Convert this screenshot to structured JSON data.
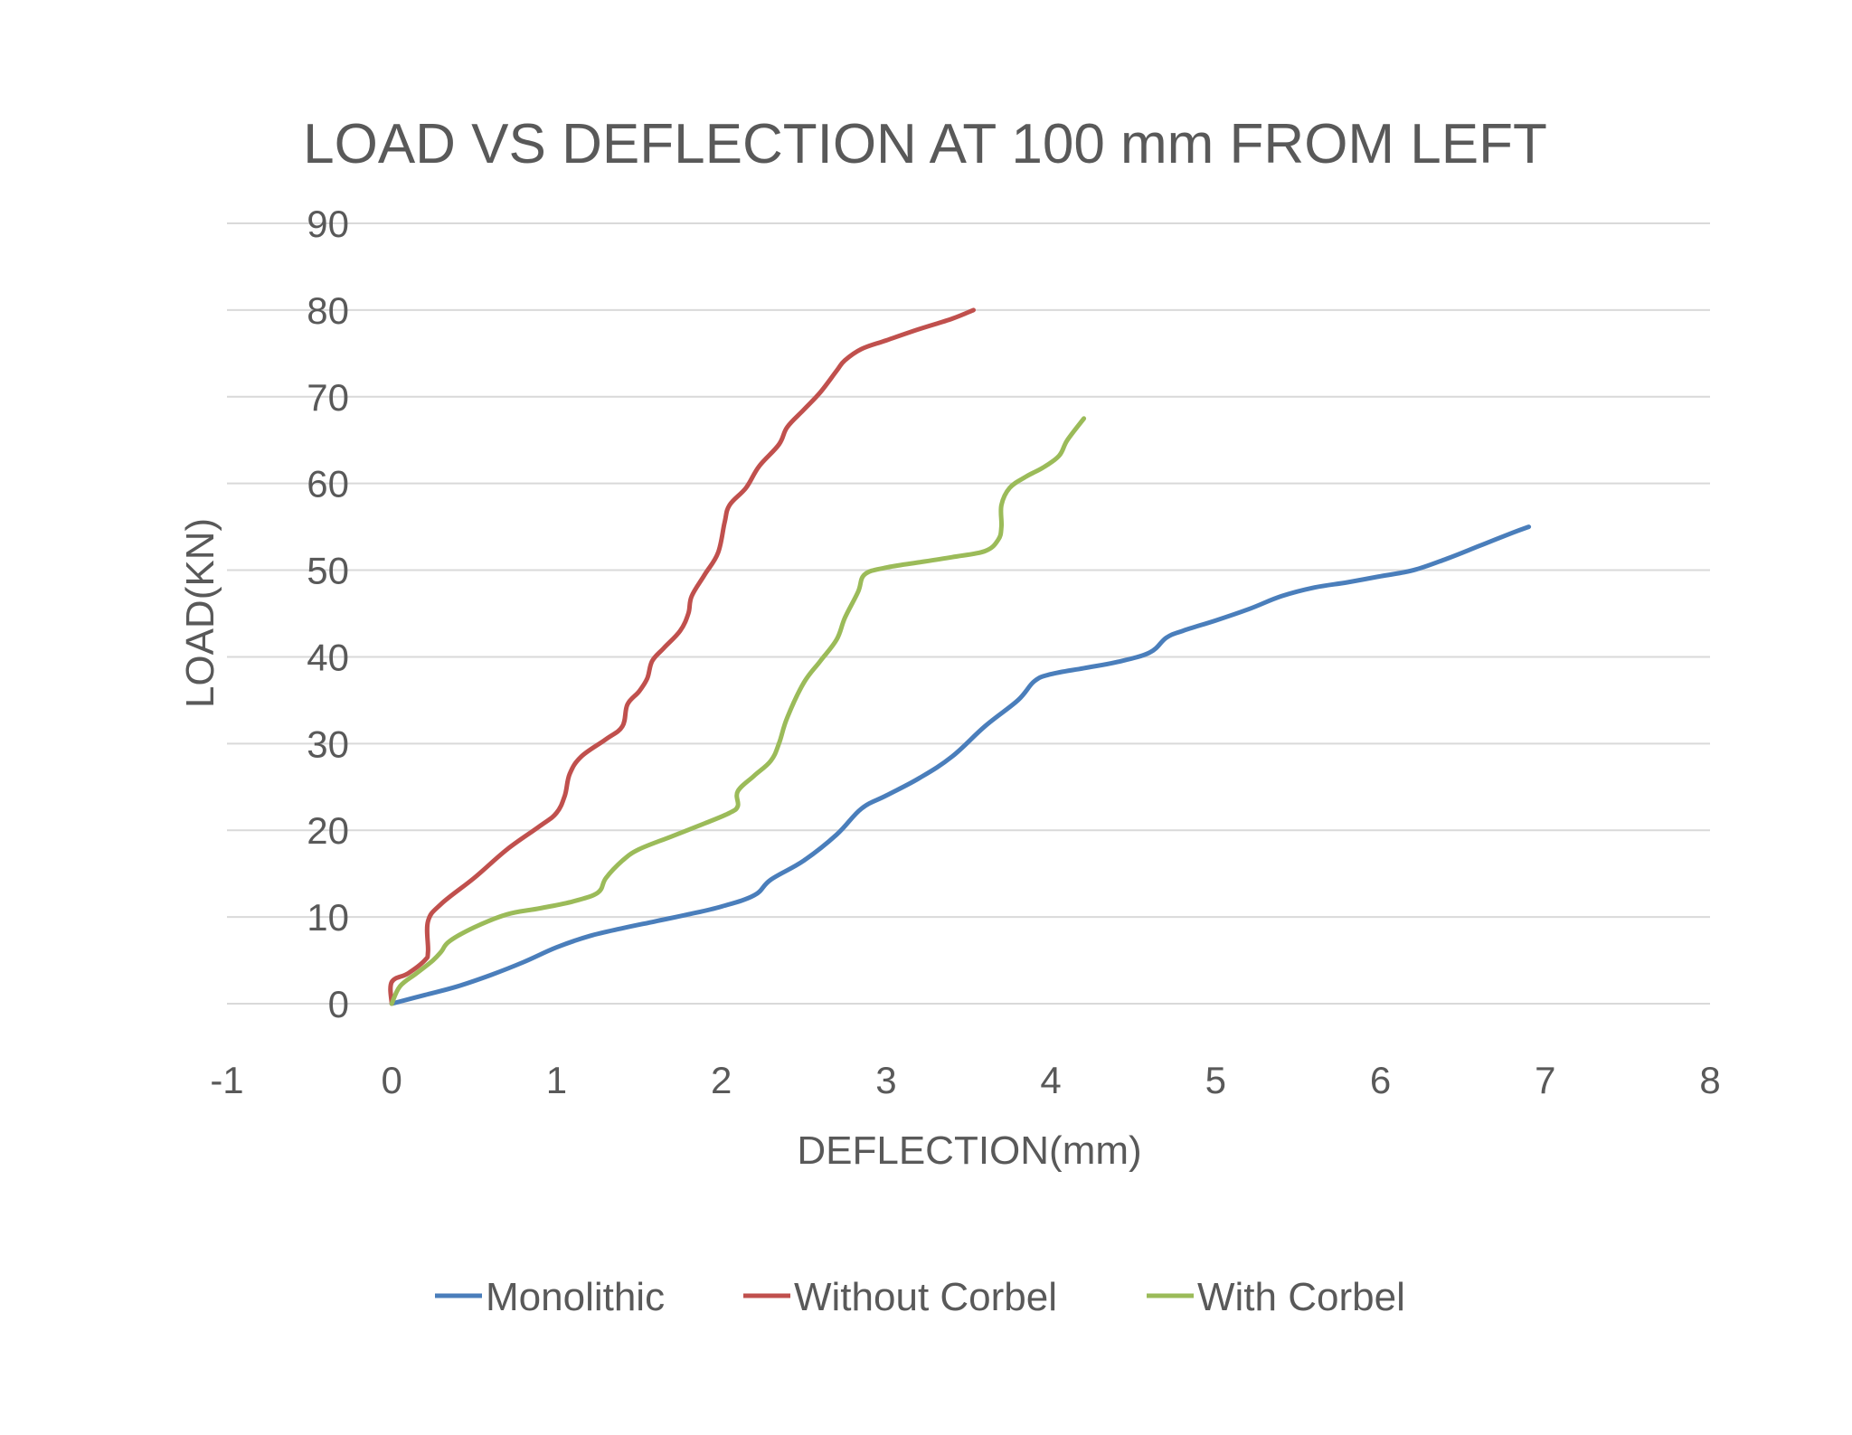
{
  "chart_data": {
    "type": "line",
    "title": "LOAD VS DEFLECTION AT  100 mm FROM LEFT",
    "xlabel": "DEFLECTION(mm)",
    "ylabel": "LOAD(KN)",
    "xlim": [
      -1,
      8
    ],
    "ylim": [
      0,
      90
    ],
    "x_ticks": [
      -1,
      0,
      1,
      2,
      3,
      4,
      5,
      6,
      7,
      8
    ],
    "y_ticks": [
      0,
      10,
      20,
      30,
      40,
      50,
      60,
      70,
      80,
      90
    ],
    "grid": "horizontal",
    "legend_position": "bottom",
    "series": [
      {
        "name": "Monolithic",
        "color": "#4a7ebb",
        "points": [
          [
            0,
            0
          ],
          [
            0.2,
            1
          ],
          [
            0.4,
            2
          ],
          [
            0.6,
            3.3
          ],
          [
            0.8,
            4.8
          ],
          [
            1.0,
            6.5
          ],
          [
            1.2,
            7.8
          ],
          [
            1.4,
            8.7
          ],
          [
            1.6,
            9.5
          ],
          [
            1.8,
            10.3
          ],
          [
            2.0,
            11.2
          ],
          [
            2.2,
            12.5
          ],
          [
            2.3,
            14.3
          ],
          [
            2.5,
            16.5
          ],
          [
            2.7,
            19.5
          ],
          [
            2.85,
            22.5
          ],
          [
            3.0,
            24.0
          ],
          [
            3.2,
            26.0
          ],
          [
            3.4,
            28.5
          ],
          [
            3.6,
            32.0
          ],
          [
            3.8,
            35.0
          ],
          [
            3.9,
            37.2
          ],
          [
            4.0,
            38.0
          ],
          [
            4.2,
            38.7
          ],
          [
            4.4,
            39.4
          ],
          [
            4.6,
            40.5
          ],
          [
            4.7,
            42.2
          ],
          [
            4.8,
            43.0
          ],
          [
            5.0,
            44.2
          ],
          [
            5.2,
            45.5
          ],
          [
            5.4,
            47.0
          ],
          [
            5.6,
            48.0
          ],
          [
            5.8,
            48.6
          ],
          [
            6.0,
            49.3
          ],
          [
            6.2,
            50.0
          ],
          [
            6.4,
            51.3
          ],
          [
            6.6,
            52.8
          ],
          [
            6.8,
            54.3
          ],
          [
            6.9,
            55.0
          ]
        ]
      },
      {
        "name": "Without Corbel",
        "color": "#c0504d",
        "points": [
          [
            0,
            0
          ],
          [
            0,
            2.5
          ],
          [
            0.1,
            3.5
          ],
          [
            0.2,
            5.0
          ],
          [
            0.22,
            6.0
          ],
          [
            0.22,
            9.5
          ],
          [
            0.3,
            11.5
          ],
          [
            0.5,
            14.5
          ],
          [
            0.7,
            17.8
          ],
          [
            0.9,
            20.5
          ],
          [
            1.0,
            22.0
          ],
          [
            1.05,
            24.0
          ],
          [
            1.08,
            26.5
          ],
          [
            1.15,
            28.5
          ],
          [
            1.3,
            30.5
          ],
          [
            1.4,
            32.0
          ],
          [
            1.43,
            34.5
          ],
          [
            1.5,
            36.0
          ],
          [
            1.55,
            37.5
          ],
          [
            1.58,
            39.5
          ],
          [
            1.65,
            41.0
          ],
          [
            1.75,
            43.0
          ],
          [
            1.8,
            45.0
          ],
          [
            1.82,
            47.0
          ],
          [
            1.9,
            49.5
          ],
          [
            1.98,
            52.0
          ],
          [
            2.02,
            55.5
          ],
          [
            2.05,
            57.5
          ],
          [
            2.15,
            59.5
          ],
          [
            2.23,
            62.0
          ],
          [
            2.35,
            64.5
          ],
          [
            2.4,
            66.5
          ],
          [
            2.5,
            68.5
          ],
          [
            2.6,
            70.5
          ],
          [
            2.7,
            73.0
          ],
          [
            2.75,
            74.2
          ],
          [
            2.85,
            75.5
          ],
          [
            3.0,
            76.5
          ],
          [
            3.2,
            77.8
          ],
          [
            3.4,
            79.0
          ],
          [
            3.53,
            80.0
          ]
        ]
      },
      {
        "name": "With Corbel",
        "color": "#9bbb59",
        "points": [
          [
            0,
            0
          ],
          [
            0.05,
            2.0
          ],
          [
            0.15,
            3.5
          ],
          [
            0.25,
            5.0
          ],
          [
            0.3,
            6.0
          ],
          [
            0.35,
            7.2
          ],
          [
            0.5,
            8.8
          ],
          [
            0.7,
            10.3
          ],
          [
            0.9,
            11.0
          ],
          [
            1.1,
            11.8
          ],
          [
            1.25,
            12.8
          ],
          [
            1.3,
            14.5
          ],
          [
            1.4,
            16.5
          ],
          [
            1.5,
            17.8
          ],
          [
            1.7,
            19.3
          ],
          [
            1.9,
            20.8
          ],
          [
            2.05,
            22.0
          ],
          [
            2.1,
            22.8
          ],
          [
            2.1,
            24.5
          ],
          [
            2.2,
            26.3
          ],
          [
            2.3,
            28.0
          ],
          [
            2.35,
            30.0
          ],
          [
            2.4,
            33.0
          ],
          [
            2.5,
            37.0
          ],
          [
            2.6,
            39.5
          ],
          [
            2.7,
            42.0
          ],
          [
            2.75,
            44.5
          ],
          [
            2.83,
            47.5
          ],
          [
            2.87,
            49.5
          ],
          [
            3.0,
            50.3
          ],
          [
            3.2,
            50.9
          ],
          [
            3.4,
            51.5
          ],
          [
            3.6,
            52.2
          ],
          [
            3.68,
            53.5
          ],
          [
            3.7,
            55.0
          ],
          [
            3.7,
            57.5
          ],
          [
            3.75,
            59.5
          ],
          [
            3.85,
            60.8
          ],
          [
            3.95,
            61.8
          ],
          [
            4.05,
            63.2
          ],
          [
            4.1,
            65.0
          ],
          [
            4.2,
            67.5
          ]
        ]
      }
    ]
  }
}
